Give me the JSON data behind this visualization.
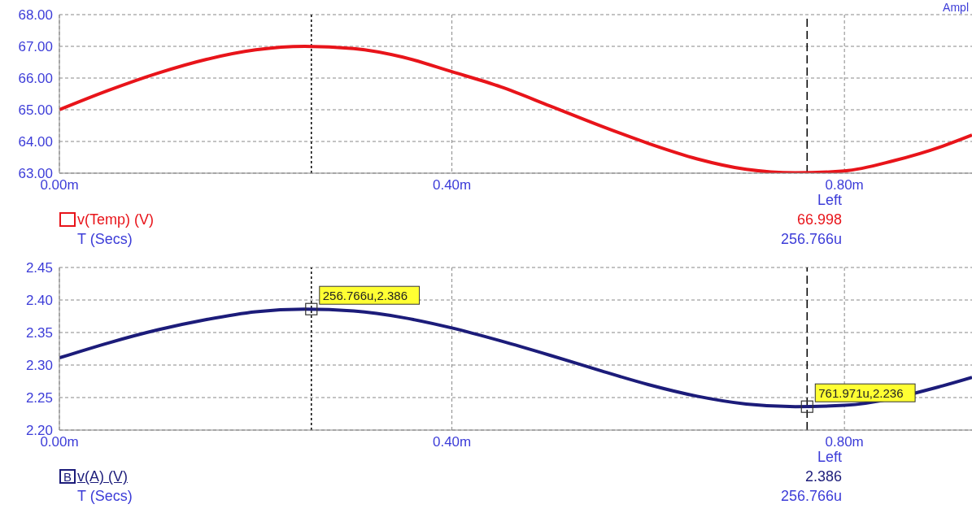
{
  "chart_data": [
    {
      "type": "line",
      "xlabel": "T (Secs)",
      "x": [
        0,
        0.05,
        0.1,
        0.15,
        0.2,
        0.25,
        0.3,
        0.35,
        0.4,
        0.45,
        0.5,
        0.55,
        0.6,
        0.65,
        0.7,
        0.75,
        0.8,
        0.85,
        0.9,
        0.93
      ],
      "series": [
        {
          "name": "v(Temp) (V)",
          "color": "#e8141a",
          "values": [
            65.0,
            65.61,
            66.15,
            66.59,
            66.89,
            67.0,
            66.93,
            66.66,
            66.2,
            65.72,
            65.12,
            64.51,
            63.94,
            63.45,
            63.12,
            63.01,
            63.07,
            63.39,
            63.85,
            64.2
          ]
        }
      ],
      "xlim": [
        0,
        0.93
      ],
      "xticks": [
        {
          "value": 0,
          "label": "0.00m"
        },
        {
          "value": 0.4,
          "label": "0.40m"
        },
        {
          "value": 0.8,
          "label": "0.80m"
        }
      ],
      "ylim": [
        63,
        68
      ],
      "yticks": [
        {
          "value": 63,
          "label": "63.00"
        },
        {
          "value": 64,
          "label": "64.00"
        },
        {
          "value": 65,
          "label": "65.00"
        },
        {
          "value": 66,
          "label": "66.00"
        },
        {
          "value": 67,
          "label": "67.00"
        },
        {
          "value": 68,
          "label": "68.00"
        }
      ],
      "ref_lines": [
        {
          "axis": "x",
          "value": 0.256766,
          "color": "#000000",
          "line_style": "dotted"
        },
        {
          "axis": "x",
          "value": 0.761971,
          "color": "#000000",
          "line_style": "dashed"
        }
      ],
      "annotations": [
        "Left",
        "66.998",
        "256.766u",
        "Ampl"
      ],
      "grid": true,
      "legend": "bottom left",
      "marker": "none",
      "line_style": "solid"
    },
    {
      "type": "line",
      "xlabel": "T (Secs)",
      "x": [
        0,
        0.05,
        0.1,
        0.15,
        0.2,
        0.25,
        0.3,
        0.35,
        0.4,
        0.45,
        0.5,
        0.55,
        0.6,
        0.65,
        0.7,
        0.75,
        0.8,
        0.85,
        0.9,
        0.93
      ],
      "series": [
        {
          "name": "v(A) (V)",
          "color": "#1c1c7a",
          "values": [
            2.311,
            2.334,
            2.354,
            2.37,
            2.382,
            2.386,
            2.383,
            2.373,
            2.357,
            2.337,
            2.315,
            2.292,
            2.27,
            2.252,
            2.24,
            2.236,
            2.238,
            null,
            2.268,
            2.281
          ]
        }
      ],
      "xlim": [
        0,
        0.93
      ],
      "xticks": [
        {
          "value": 0,
          "label": "0.00m"
        },
        {
          "value": 0.4,
          "label": "0.40m"
        },
        {
          "value": 0.8,
          "label": "0.80m"
        }
      ],
      "ylim": [
        2.2,
        2.45
      ],
      "yticks": [
        {
          "value": 2.2,
          "label": "2.20"
        },
        {
          "value": 2.25,
          "label": "2.25"
        },
        {
          "value": 2.3,
          "label": "2.30"
        },
        {
          "value": 2.35,
          "label": "2.35"
        },
        {
          "value": 2.4,
          "label": "2.40"
        },
        {
          "value": 2.45,
          "label": "2.45"
        }
      ],
      "ref_lines": [
        {
          "axis": "x",
          "value": 0.256766,
          "color": "#000000",
          "line_style": "dotted"
        },
        {
          "axis": "x",
          "value": 0.761971,
          "color": "#000000",
          "line_style": "dashed"
        }
      ],
      "annotations": [
        "Left",
        "2.386",
        "256.766u",
        "B",
        {
          "text": "256.766u,2.386",
          "x": 0.256766,
          "y": 2.386
        },
        {
          "text": "761.971u,2.236",
          "x": 0.761971,
          "y": 2.236
        }
      ],
      "grid": true,
      "legend": "bottom left",
      "marker": "none",
      "line_style": "solid"
    }
  ]
}
